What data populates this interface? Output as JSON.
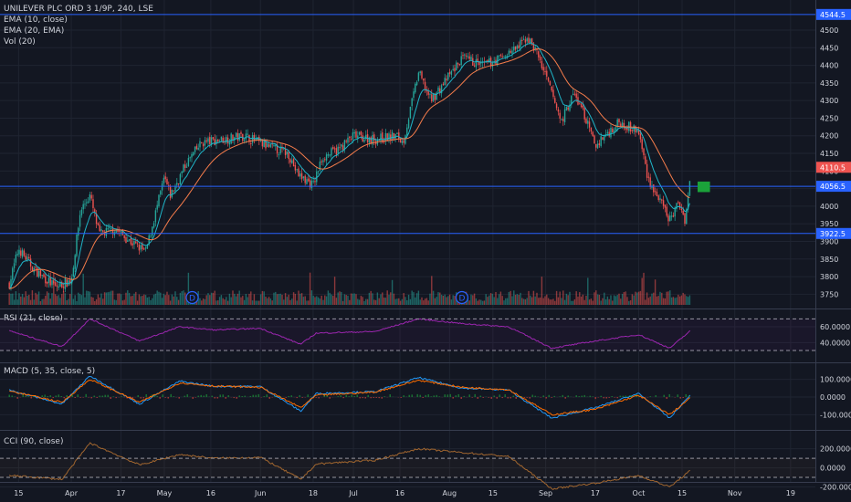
{
  "header": {
    "symbol": "UNILEVER PLC ORD 3 1/9P, 240, LSE",
    "studies": [
      "EMA (10, close)",
      "EMA (20, EMA)",
      "Vol (20)"
    ]
  },
  "panes": {
    "rsi_title": "RSI (21, close)",
    "macd_title": "MACD (5, 35, close, 5)",
    "cci_title": "CCI (90, close)"
  },
  "colors": {
    "background": "#131722",
    "grid": "#1f2431",
    "up": "#26a69a",
    "down": "#ef5350",
    "ema10": "#1fb6c9",
    "ema20": "#f57c4b",
    "hline": "#2962ff",
    "rsi": "#9c27b0",
    "macd": "#2196f3",
    "signal": "#ff6d00",
    "cci": "#a1662f",
    "price_label": "#ef5350",
    "level_label": "#2962ff",
    "target_box": "#1ba23a"
  },
  "chart_data": [
    {
      "type": "candlestick",
      "title": "UNILEVER PLC ORD 3 1/9P, 240, LSE",
      "ylim": [
        3725,
        4570
      ],
      "y_ticks": [
        3750,
        3800,
        3850,
        3900,
        3950,
        4000,
        4050,
        4100,
        4150,
        4200,
        4250,
        4300,
        4350,
        4400,
        4450,
        4500
      ],
      "x_tick_labels": [
        "15",
        "Apr",
        "17",
        "May",
        "16",
        "Jun",
        "18",
        "Jul",
        "16",
        "Aug",
        "15",
        "Sep",
        "17",
        "Oct",
        "15",
        "Nov",
        "19"
      ],
      "price_path": [
        {
          "x": "Mar 12",
          "y": 3780
        },
        {
          "x": "Mar 15",
          "y": 3880
        },
        {
          "x": "Mar 20",
          "y": 3820
        },
        {
          "x": "Mar 27",
          "y": 3770
        },
        {
          "x": "Apr 1",
          "y": 3790
        },
        {
          "x": "Apr 4",
          "y": 3990
        },
        {
          "x": "Apr 7",
          "y": 4030
        },
        {
          "x": "Apr 10",
          "y": 3920
        },
        {
          "x": "Apr 15",
          "y": 3935
        },
        {
          "x": "Apr 20",
          "y": 3900
        },
        {
          "x": "Apr 25",
          "y": 3870
        },
        {
          "x": "Apr 29",
          "y": 4010
        },
        {
          "x": "May 1",
          "y": 4080
        },
        {
          "x": "May 3",
          "y": 4030
        },
        {
          "x": "May 8",
          "y": 4120
        },
        {
          "x": "May 13",
          "y": 4180
        },
        {
          "x": "May 20",
          "y": 4190
        },
        {
          "x": "May 27",
          "y": 4200
        },
        {
          "x": "Jun 3",
          "y": 4170
        },
        {
          "x": "Jun 10",
          "y": 4150
        },
        {
          "x": "Jun 13",
          "y": 4090
        },
        {
          "x": "Jun 18",
          "y": 4060
        },
        {
          "x": "Jun 21",
          "y": 4140
        },
        {
          "x": "Jun 26",
          "y": 4160
        },
        {
          "x": "Jul 1",
          "y": 4200
        },
        {
          "x": "Jul 8",
          "y": 4190
        },
        {
          "x": "Jul 15",
          "y": 4200
        },
        {
          "x": "Jul 17",
          "y": 4180
        },
        {
          "x": "Jul 22",
          "y": 4380
        },
        {
          "x": "Jul 26",
          "y": 4300
        },
        {
          "x": "Jul 31",
          "y": 4360
        },
        {
          "x": "Aug 5",
          "y": 4420
        },
        {
          "x": "Aug 12",
          "y": 4400
        },
        {
          "x": "Aug 17",
          "y": 4420
        },
        {
          "x": "Aug 23",
          "y": 4450
        },
        {
          "x": "Aug 26",
          "y": 4480
        },
        {
          "x": "Aug 29",
          "y": 4440
        },
        {
          "x": "Sep 3",
          "y": 4320
        },
        {
          "x": "Sep 6",
          "y": 4240
        },
        {
          "x": "Sep 10",
          "y": 4320
        },
        {
          "x": "Sep 13",
          "y": 4270
        },
        {
          "x": "Sep 17",
          "y": 4170
        },
        {
          "x": "Sep 20",
          "y": 4200
        },
        {
          "x": "Sep 25",
          "y": 4240
        },
        {
          "x": "Oct 1",
          "y": 4210
        },
        {
          "x": "Oct 4",
          "y": 4080
        },
        {
          "x": "Oct 8",
          "y": 4010
        },
        {
          "x": "Oct 11",
          "y": 3960
        },
        {
          "x": "Oct 14",
          "y": 4010
        },
        {
          "x": "Oct 16",
          "y": 3960
        },
        {
          "x": "Oct 18",
          "y": 4110
        }
      ],
      "horizontal_lines": [
        4544.5,
        4056.5,
        3922.5
      ],
      "level_labels": [
        "4544.5",
        "4056.5",
        "3922.5"
      ],
      "last_price": 4110.5,
      "last_price_label": "4110.5",
      "target_box": {
        "from": 4040,
        "to": 4070
      },
      "markers": [
        {
          "x": "May 10",
          "label": "D"
        },
        {
          "x": "Aug 5",
          "label": "D"
        }
      ],
      "series": [
        {
          "name": "EMA (10, close)",
          "type": "line"
        },
        {
          "name": "EMA (20, EMA)",
          "type": "line"
        },
        {
          "name": "Vol (20)",
          "type": "bar"
        }
      ]
    },
    {
      "type": "line",
      "title": "RSI (21, close)",
      "ylim": [
        22,
        75
      ],
      "y_ticks": [
        40,
        60
      ],
      "y_tick_labels": [
        "40.0000",
        "60.0000"
      ],
      "bands": [
        30,
        70
      ],
      "series": [
        {
          "name": "RSI (21, close)",
          "x": [
            "Mar 12",
            "Mar 29",
            "Apr 7",
            "Apr 23",
            "May 6",
            "May 17",
            "Jun 1",
            "Jun 14",
            "Jun 19",
            "Jul 8",
            "Jul 22",
            "Aug 5",
            "Aug 20",
            "Sep 3",
            "Sep 17",
            "Oct 1",
            "Oct 11",
            "Oct 18"
          ],
          "values": [
            55,
            35,
            70,
            42,
            60,
            56,
            58,
            38,
            52,
            54,
            70,
            64,
            60,
            33,
            42,
            50,
            33,
            56
          ]
        }
      ]
    },
    {
      "type": "line",
      "title": "MACD (5, 35, close, 5)",
      "ylim": [
        -155,
        160
      ],
      "y_ticks": [
        -100,
        0,
        100
      ],
      "y_tick_labels": [
        "-100.0000",
        "0.0000",
        "100.0000"
      ],
      "series": [
        {
          "name": "MACD",
          "x": [
            "Mar 12",
            "Mar 29",
            "Apr 7",
            "Apr 23",
            "May 6",
            "May 17",
            "Jun 1",
            "Jun 14",
            "Jun 19",
            "Jul 8",
            "Jul 22",
            "Aug 5",
            "Aug 20",
            "Sep 3",
            "Sep 17",
            "Oct 1",
            "Oct 11",
            "Oct 18"
          ],
          "values": [
            40,
            -40,
            120,
            -40,
            90,
            60,
            60,
            -80,
            20,
            30,
            110,
            50,
            40,
            -120,
            -60,
            20,
            -120,
            20
          ]
        },
        {
          "name": "Signal",
          "x": [
            "Mar 12",
            "Mar 29",
            "Apr 7",
            "Apr 23",
            "May 6",
            "May 17",
            "Jun 1",
            "Jun 14",
            "Jun 19",
            "Jul 8",
            "Jul 22",
            "Aug 5",
            "Aug 20",
            "Sep 3",
            "Sep 17",
            "Oct 1",
            "Oct 11",
            "Oct 18"
          ],
          "values": [
            35,
            -30,
            100,
            -30,
            80,
            62,
            55,
            -60,
            10,
            28,
            95,
            55,
            42,
            -100,
            -70,
            10,
            -100,
            0
          ]
        }
      ]
    },
    {
      "type": "line",
      "title": "CCI (90, close)",
      "ylim": [
        -300,
        330
      ],
      "y_ticks": [
        -200,
        0,
        200
      ],
      "y_tick_labels": [
        "-200.0000",
        "0.0000",
        "200.0000"
      ],
      "bands": [
        -100,
        100
      ],
      "series": [
        {
          "name": "CCI (90, close)",
          "x": [
            "Mar 12",
            "Mar 29",
            "Apr 7",
            "Apr 23",
            "May 6",
            "May 17",
            "Jun 1",
            "Jun 14",
            "Jun 19",
            "Jul 8",
            "Jul 22",
            "Aug 5",
            "Aug 20",
            "Sep 3",
            "Sep 17",
            "Oct 1",
            "Oct 11",
            "Oct 18"
          ],
          "values": [
            -80,
            -120,
            260,
            30,
            140,
            100,
            110,
            -120,
            40,
            80,
            200,
            160,
            120,
            -220,
            -160,
            -80,
            -200,
            -20
          ]
        }
      ]
    }
  ]
}
